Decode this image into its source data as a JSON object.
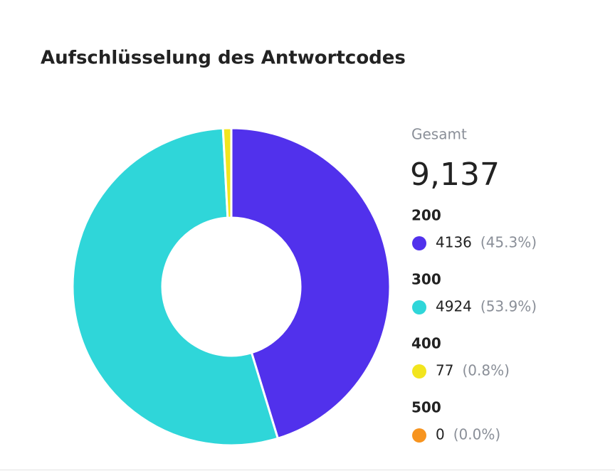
{
  "chart_data": {
    "type": "donut",
    "title": "Aufschlüsselung des Antwortcodes",
    "total_caption": "Gesamt",
    "total_label": "9,137",
    "categories": [
      "200",
      "300",
      "400",
      "500"
    ],
    "values": [
      4136,
      4924,
      77,
      0
    ],
    "percent_labels": [
      "(45.3%)",
      "(53.9%)",
      "(0.8%)",
      "(0.0%)"
    ],
    "colors": [
      "#5131ec",
      "#2fd6d9",
      "#f2e51e",
      "#f7941f"
    ]
  }
}
